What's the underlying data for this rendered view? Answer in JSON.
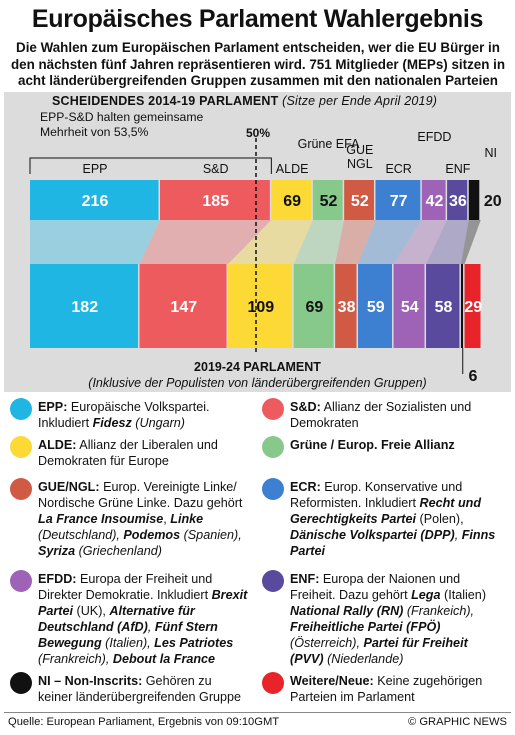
{
  "title": "Europäisches Parlament Wahlergebnis",
  "intro": "Die Wahlen zum Europäischen Parlament entscheiden, wer die EU Bürger in den nächsten fünf Jahren repräsentieren wird. 751 Mitglieder (MEPs) sitzen in acht länderübergreifenden Gruppen zusammen mit den nationalen Parteien",
  "chart_data": {
    "type": "bar",
    "title": "SCHEIDENDES 2014-19 PARLAMENT",
    "subtitle": "(Sitze per Ende April 2019)",
    "majority_note": "EPP-S&D halten gemeinsame Mehrheit von 53,5%",
    "majority_marker": "50%",
    "total_seats": 751,
    "categories": [
      "EPP",
      "S&D",
      "ALDE",
      "Grüne EFA",
      "GUE NGL",
      "ECR",
      "EFDD",
      "ENF",
      "NI",
      "Weitere/Neue"
    ],
    "colors": [
      "#1fb6e4",
      "#ee5b5f",
      "#fcd934",
      "#86c98b",
      "#d05a44",
      "#3d7fd0",
      "#9e62b7",
      "#5a4a9e",
      "#111111",
      "#e8232a"
    ],
    "series": [
      {
        "name": "SCHEIDENDES 2014-19 PARLAMENT",
        "values": [
          216,
          185,
          69,
          52,
          52,
          77,
          42,
          36,
          20,
          0
        ]
      },
      {
        "name": "2019-24 PARLAMENT",
        "values": [
          182,
          147,
          109,
          69,
          38,
          59,
          54,
          58,
          6,
          29
        ]
      }
    ],
    "second_title": "2019-24 PARLAMENT",
    "second_subtitle": "(Inklusive der Populisten von länderübergreifenden Gruppen)"
  },
  "legend": [
    {
      "color": "#1fb6e4",
      "abbr": "EPP:",
      "text": " Europäische Volkspartei. Inkludiert ",
      "ex": "",
      "exb": "Fidesz",
      "ex2": " (Ungarn)"
    },
    {
      "color": "#ee5b5f",
      "abbr": "S&D:",
      "text": " Allianz der Sozialisten und Demokraten",
      "ex": "",
      "exb": "",
      "ex2": ""
    },
    {
      "color": "#fcd934",
      "abbr": "ALDE:",
      "text": " Allianz der Liberalen und Demokraten für Europe",
      "ex": "",
      "exb": "",
      "ex2": ""
    },
    {
      "color": "#86c98b",
      "abbr": "Grüne / Europ. Freie Allianz",
      "text": "",
      "ex": "",
      "exb": "",
      "ex2": ""
    },
    {
      "color": "#d05a44",
      "abbr": "GUE/NGL:",
      "text": " Europ. Vereinigte Linke/ Nordische Grüne Linke. Dazu gehört ",
      "exb": "La France Insoumise",
      "ex": ", ",
      "exb2": "Linke",
      "ex2": " (Deutschland), ",
      "exb3": "Podemos",
      "ex3": " (Spanien), ",
      "exb4": "Syriza",
      "ex4": " (Griechenland)"
    },
    {
      "color": "#3d7fd0",
      "abbr": "ECR:",
      "text": " Europ. Konservative und Reformisten. Inkludiert ",
      "exb": "Recht und Gerechtigkeits Partei",
      "ex": " (Polen), ",
      "exb2": "Dänische Volkspartei (DPP)",
      "ex2": ", ",
      "exb3": "Finns Partei",
      "ex3": "",
      "exb4": "",
      "ex4": ""
    },
    {
      "color": "#9e62b7",
      "abbr": "EFDD:",
      "text": " Europa der Freiheit und Direkter Demokratie. Inkludiert ",
      "exb": "Brexit Partei",
      "ex": " (UK), ",
      "exb2": "Alternative für Deutschland (AfD)",
      "ex2": ", ",
      "exb3": "Fünf Stern Bewegung",
      "ex3": " (Italien), ",
      "exb4": "Les Patriotes",
      "ex4": " (Frankreich), ",
      "exb5": "Debout la France",
      "ex5": ""
    },
    {
      "color": "#5a4a9e",
      "abbr": "ENF:",
      "text": " Europa der Naionen und Freiheit. Dazu gehört ",
      "exb": "Lega",
      "ex": " (Italien) ",
      "exb2": "National Rally (RN)",
      "ex2": " (Frankeich), ",
      "exb3": "Freiheitliche Partei (FPÖ)",
      "ex3": " (Österreich), ",
      "exb4": "Partei für Freiheit (PVV)",
      "ex4": " (Niederlande)"
    },
    {
      "color": "#111111",
      "abbr": "NI – Non-Inscrits:",
      "text": " Gehören zu keiner länderübergreifenden Gruppe",
      "ex": "",
      "exb": "",
      "ex2": ""
    },
    {
      "color": "#e8232a",
      "abbr": "Weitere/Neue:",
      "text": " Keine zugehörigen Parteien im Parlament",
      "ex": "",
      "exb": "",
      "ex2": ""
    }
  ],
  "footer": {
    "source": "Quelle: European Parliament, Ergebnis von 09:10GMT",
    "credit": "© GRAPHIC NEWS"
  }
}
